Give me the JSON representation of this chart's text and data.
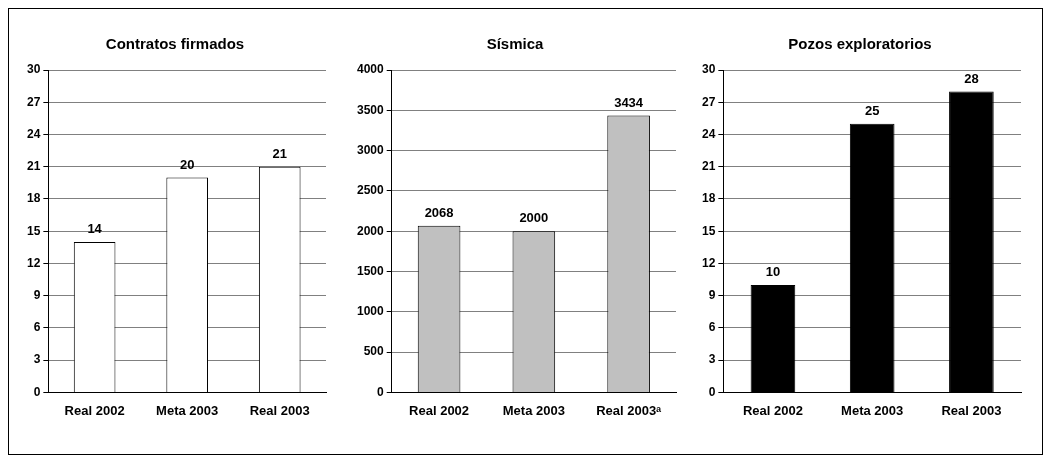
{
  "chart_data": [
    {
      "type": "bar",
      "title": "Contratos firmados",
      "categories": [
        "Real 2002",
        "Meta 2003",
        "Real 2003"
      ],
      "values": [
        14,
        20,
        21
      ],
      "color": "#ffffff",
      "ylim": [
        0,
        30
      ],
      "yticks": [
        0,
        3,
        6,
        9,
        12,
        15,
        18,
        21,
        24,
        27,
        30
      ],
      "grid": "y",
      "legend": false,
      "data_labels": true
    },
    {
      "type": "bar",
      "title": "Sísmica",
      "categories": [
        "Real 2002",
        "Meta 2003",
        "Real 2003ᵃ"
      ],
      "values": [
        2068,
        2000,
        3434
      ],
      "color": "#c0c0c0",
      "ylim": [
        0,
        4000
      ],
      "yticks": [
        0,
        500,
        1000,
        1500,
        2000,
        2500,
        3000,
        3500,
        4000
      ],
      "grid": "y",
      "legend": false,
      "data_labels": true
    },
    {
      "type": "bar",
      "title": "Pozos exploratorios",
      "categories": [
        "Real 2002",
        "Meta 2003",
        "Real 2003"
      ],
      "values": [
        10,
        25,
        28
      ],
      "color": "#000000",
      "ylim": [
        0,
        30
      ],
      "yticks": [
        0,
        3,
        6,
        9,
        12,
        15,
        18,
        21,
        24,
        27,
        30
      ],
      "grid": "y",
      "legend": false,
      "data_labels": true
    }
  ]
}
